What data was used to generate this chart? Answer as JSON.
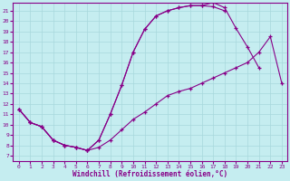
{
  "xlabel": "Windchill (Refroidissement éolien,°C)",
  "bg_color": "#c5edf0",
  "line_color": "#880088",
  "grid_color": "#a8d8dc",
  "xlim": [
    -0.5,
    23.5
  ],
  "ylim": [
    6.5,
    21.8
  ],
  "xticks": [
    0,
    1,
    2,
    3,
    4,
    5,
    6,
    7,
    8,
    9,
    10,
    11,
    12,
    13,
    14,
    15,
    16,
    17,
    18,
    19,
    20,
    21,
    22,
    23
  ],
  "yticks": [
    7,
    8,
    9,
    10,
    11,
    12,
    13,
    14,
    15,
    16,
    17,
    18,
    19,
    20,
    21
  ],
  "line1_x": [
    0,
    1,
    2,
    3,
    4,
    5,
    6,
    7,
    8,
    9,
    10,
    11,
    12,
    13,
    14,
    15,
    16,
    17,
    18
  ],
  "line1_y": [
    11.5,
    10.2,
    9.8,
    8.5,
    8.0,
    7.8,
    7.5,
    8.5,
    11.0,
    13.8,
    17.0,
    19.2,
    20.5,
    21.0,
    21.3,
    21.5,
    21.5,
    21.4,
    21.0
  ],
  "line2_x": [
    0,
    1,
    2,
    3,
    4,
    5,
    6,
    7,
    8,
    9,
    10,
    11,
    12,
    13,
    14,
    15,
    16,
    17,
    18,
    19,
    20,
    21
  ],
  "line2_y": [
    11.5,
    10.2,
    9.8,
    8.5,
    8.0,
    7.8,
    7.5,
    8.5,
    11.0,
    13.8,
    17.0,
    19.2,
    20.5,
    21.0,
    21.3,
    21.5,
    21.5,
    21.8,
    21.3,
    19.3,
    17.5,
    15.5
  ],
  "line3_x": [
    0,
    1,
    2,
    3,
    4,
    5,
    6,
    7,
    8,
    9,
    10,
    11,
    12,
    13,
    14,
    15,
    16,
    17,
    18,
    19,
    20,
    21,
    22,
    23
  ],
  "line3_y": [
    11.5,
    10.2,
    9.8,
    8.5,
    8.0,
    7.8,
    7.5,
    7.8,
    8.5,
    9.5,
    10.5,
    11.2,
    12.0,
    12.8,
    13.2,
    13.5,
    14.0,
    14.5,
    15.0,
    15.5,
    16.0,
    17.0,
    18.5,
    14.0
  ]
}
